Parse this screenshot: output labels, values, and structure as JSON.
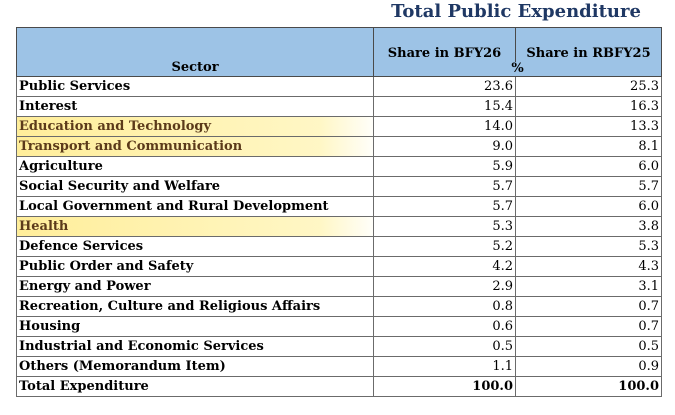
{
  "title": "Total Public Expenditure",
  "header": {
    "sector": "Sector",
    "col1": "Share in BFY26",
    "col2": "Share in RBFY25",
    "unit": "%"
  },
  "rows": [
    {
      "sector": "Public Services",
      "bfy26": "23.6",
      "rbfy25": "25.3",
      "highlight": false
    },
    {
      "sector": "Interest",
      "bfy26": "15.4",
      "rbfy25": "16.3",
      "highlight": false
    },
    {
      "sector": "Education and Technology",
      "bfy26": "14.0",
      "rbfy25": "13.3",
      "highlight": true
    },
    {
      "sector": "Transport and Communication",
      "bfy26": "9.0",
      "rbfy25": "8.1",
      "highlight": true
    },
    {
      "sector": "Agriculture",
      "bfy26": "5.9",
      "rbfy25": "6.0",
      "highlight": false
    },
    {
      "sector": "Social Security and Welfare",
      "bfy26": "5.7",
      "rbfy25": "5.7",
      "highlight": false
    },
    {
      "sector": "Local Government and Rural Development",
      "bfy26": "5.7",
      "rbfy25": "6.0",
      "highlight": false
    },
    {
      "sector": "Health",
      "bfy26": "5.3",
      "rbfy25": "3.8",
      "highlight": true
    },
    {
      "sector": "Defence Services",
      "bfy26": "5.2",
      "rbfy25": "5.3",
      "highlight": false
    },
    {
      "sector": "Public Order and Safety",
      "bfy26": "4.2",
      "rbfy25": "4.3",
      "highlight": false
    },
    {
      "sector": "Energy and Power",
      "bfy26": "2.9",
      "rbfy25": "3.1",
      "highlight": false
    },
    {
      "sector": "Recreation, Culture and Religious Affairs",
      "bfy26": "0.8",
      "rbfy25": "0.7",
      "highlight": false
    },
    {
      "sector": "Housing",
      "bfy26": "0.6",
      "rbfy25": "0.7",
      "highlight": false
    },
    {
      "sector": "Industrial and Economic Services",
      "bfy26": "0.5",
      "rbfy25": "0.5",
      "highlight": false
    },
    {
      "sector": "Others (Memorandum Item)",
      "bfy26": "1.1",
      "rbfy25": "0.9",
      "highlight": false
    }
  ],
  "total": {
    "sector": "Total Expenditure",
    "bfy26": "100.0",
    "rbfy25": "100.0"
  },
  "colors": {
    "header_bg": "#9dc3e6",
    "title": "#1f3864",
    "highlight": "#ffe878"
  }
}
